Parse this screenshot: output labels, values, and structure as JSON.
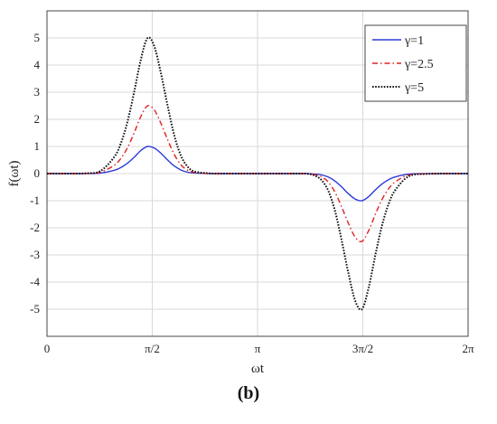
{
  "chart_data": {
    "type": "line",
    "xlabel": "ωt",
    "ylabel": "f(ωt)",
    "xlim": [
      0,
      6.2832
    ],
    "ylim": [
      -6,
      6
    ],
    "x_ticks": [
      {
        "value": 0,
        "label": "0"
      },
      {
        "value": 1.5708,
        "label": "π/2"
      },
      {
        "value": 3.1416,
        "label": "π"
      },
      {
        "value": 4.7124,
        "label": "3π/2"
      },
      {
        "value": 6.2832,
        "label": "2π"
      }
    ],
    "y_ticks": [
      {
        "value": 5,
        "label": "5"
      },
      {
        "value": 4,
        "label": "4"
      },
      {
        "value": 3,
        "label": "3"
      },
      {
        "value": 2,
        "label": "2"
      },
      {
        "value": 1,
        "label": "1"
      },
      {
        "value": 0,
        "label": "0"
      },
      {
        "value": -1,
        "label": "-1"
      },
      {
        "value": -2,
        "label": "-2"
      },
      {
        "value": -3,
        "label": "-3"
      },
      {
        "value": -4,
        "label": "-4"
      },
      {
        "value": -5,
        "label": "-5"
      }
    ],
    "grid": true,
    "legend_position": "top-right",
    "x": [
      0,
      0.3,
      0.6,
      0.8,
      1.0,
      1.1,
      1.2,
      1.3,
      1.4,
      1.5,
      1.6,
      1.7,
      1.8,
      1.9,
      2.0,
      2.1,
      2.2,
      2.4,
      2.6,
      3.0,
      3.5,
      3.8,
      3.9,
      4.0,
      4.1,
      4.2,
      4.3,
      4.4,
      4.5,
      4.6,
      4.7,
      4.8,
      4.9,
      5.0,
      5.1,
      5.2,
      5.4,
      5.7,
      6.2832
    ],
    "series": [
      {
        "name": "γ=1",
        "color": "#2b3bd8",
        "style": "solid",
        "values": [
          0,
          0,
          0.002,
          0.02,
          0.12,
          0.22,
          0.38,
          0.6,
          0.85,
          1.0,
          0.94,
          0.75,
          0.5,
          0.28,
          0.13,
          0.05,
          0.02,
          0.003,
          0,
          0,
          0,
          0,
          -0.003,
          -0.02,
          -0.05,
          -0.13,
          -0.28,
          -0.5,
          -0.75,
          -0.94,
          -1.0,
          -0.85,
          -0.6,
          -0.38,
          -0.22,
          -0.12,
          -0.02,
          -0.002,
          0
        ]
      },
      {
        "name": "γ=2.5",
        "color": "#e02020",
        "style": "dashdot",
        "values": [
          0,
          0,
          0.005,
          0.05,
          0.3,
          0.55,
          0.95,
          1.5,
          2.1,
          2.5,
          2.35,
          1.85,
          1.25,
          0.7,
          0.32,
          0.12,
          0.04,
          0.005,
          0,
          0,
          0,
          0,
          -0.005,
          -0.04,
          -0.12,
          -0.32,
          -0.7,
          -1.25,
          -1.85,
          -2.35,
          -2.5,
          -2.1,
          -1.5,
          -0.95,
          -0.55,
          -0.3,
          -0.05,
          -0.005,
          0
        ]
      },
      {
        "name": "γ=5",
        "color": "#111111",
        "style": "dotted",
        "values": [
          0,
          0,
          0.01,
          0.1,
          0.6,
          1.1,
          1.9,
          3.0,
          4.2,
          5.0,
          4.7,
          3.7,
          2.5,
          1.4,
          0.65,
          0.25,
          0.08,
          0.01,
          0,
          0,
          0,
          0,
          -0.01,
          -0.08,
          -0.25,
          -0.65,
          -1.4,
          -2.5,
          -3.7,
          -4.7,
          -5.0,
          -4.2,
          -3.0,
          -1.9,
          -1.1,
          -0.6,
          -0.1,
          -0.01,
          0
        ]
      }
    ]
  },
  "caption": "(b)"
}
